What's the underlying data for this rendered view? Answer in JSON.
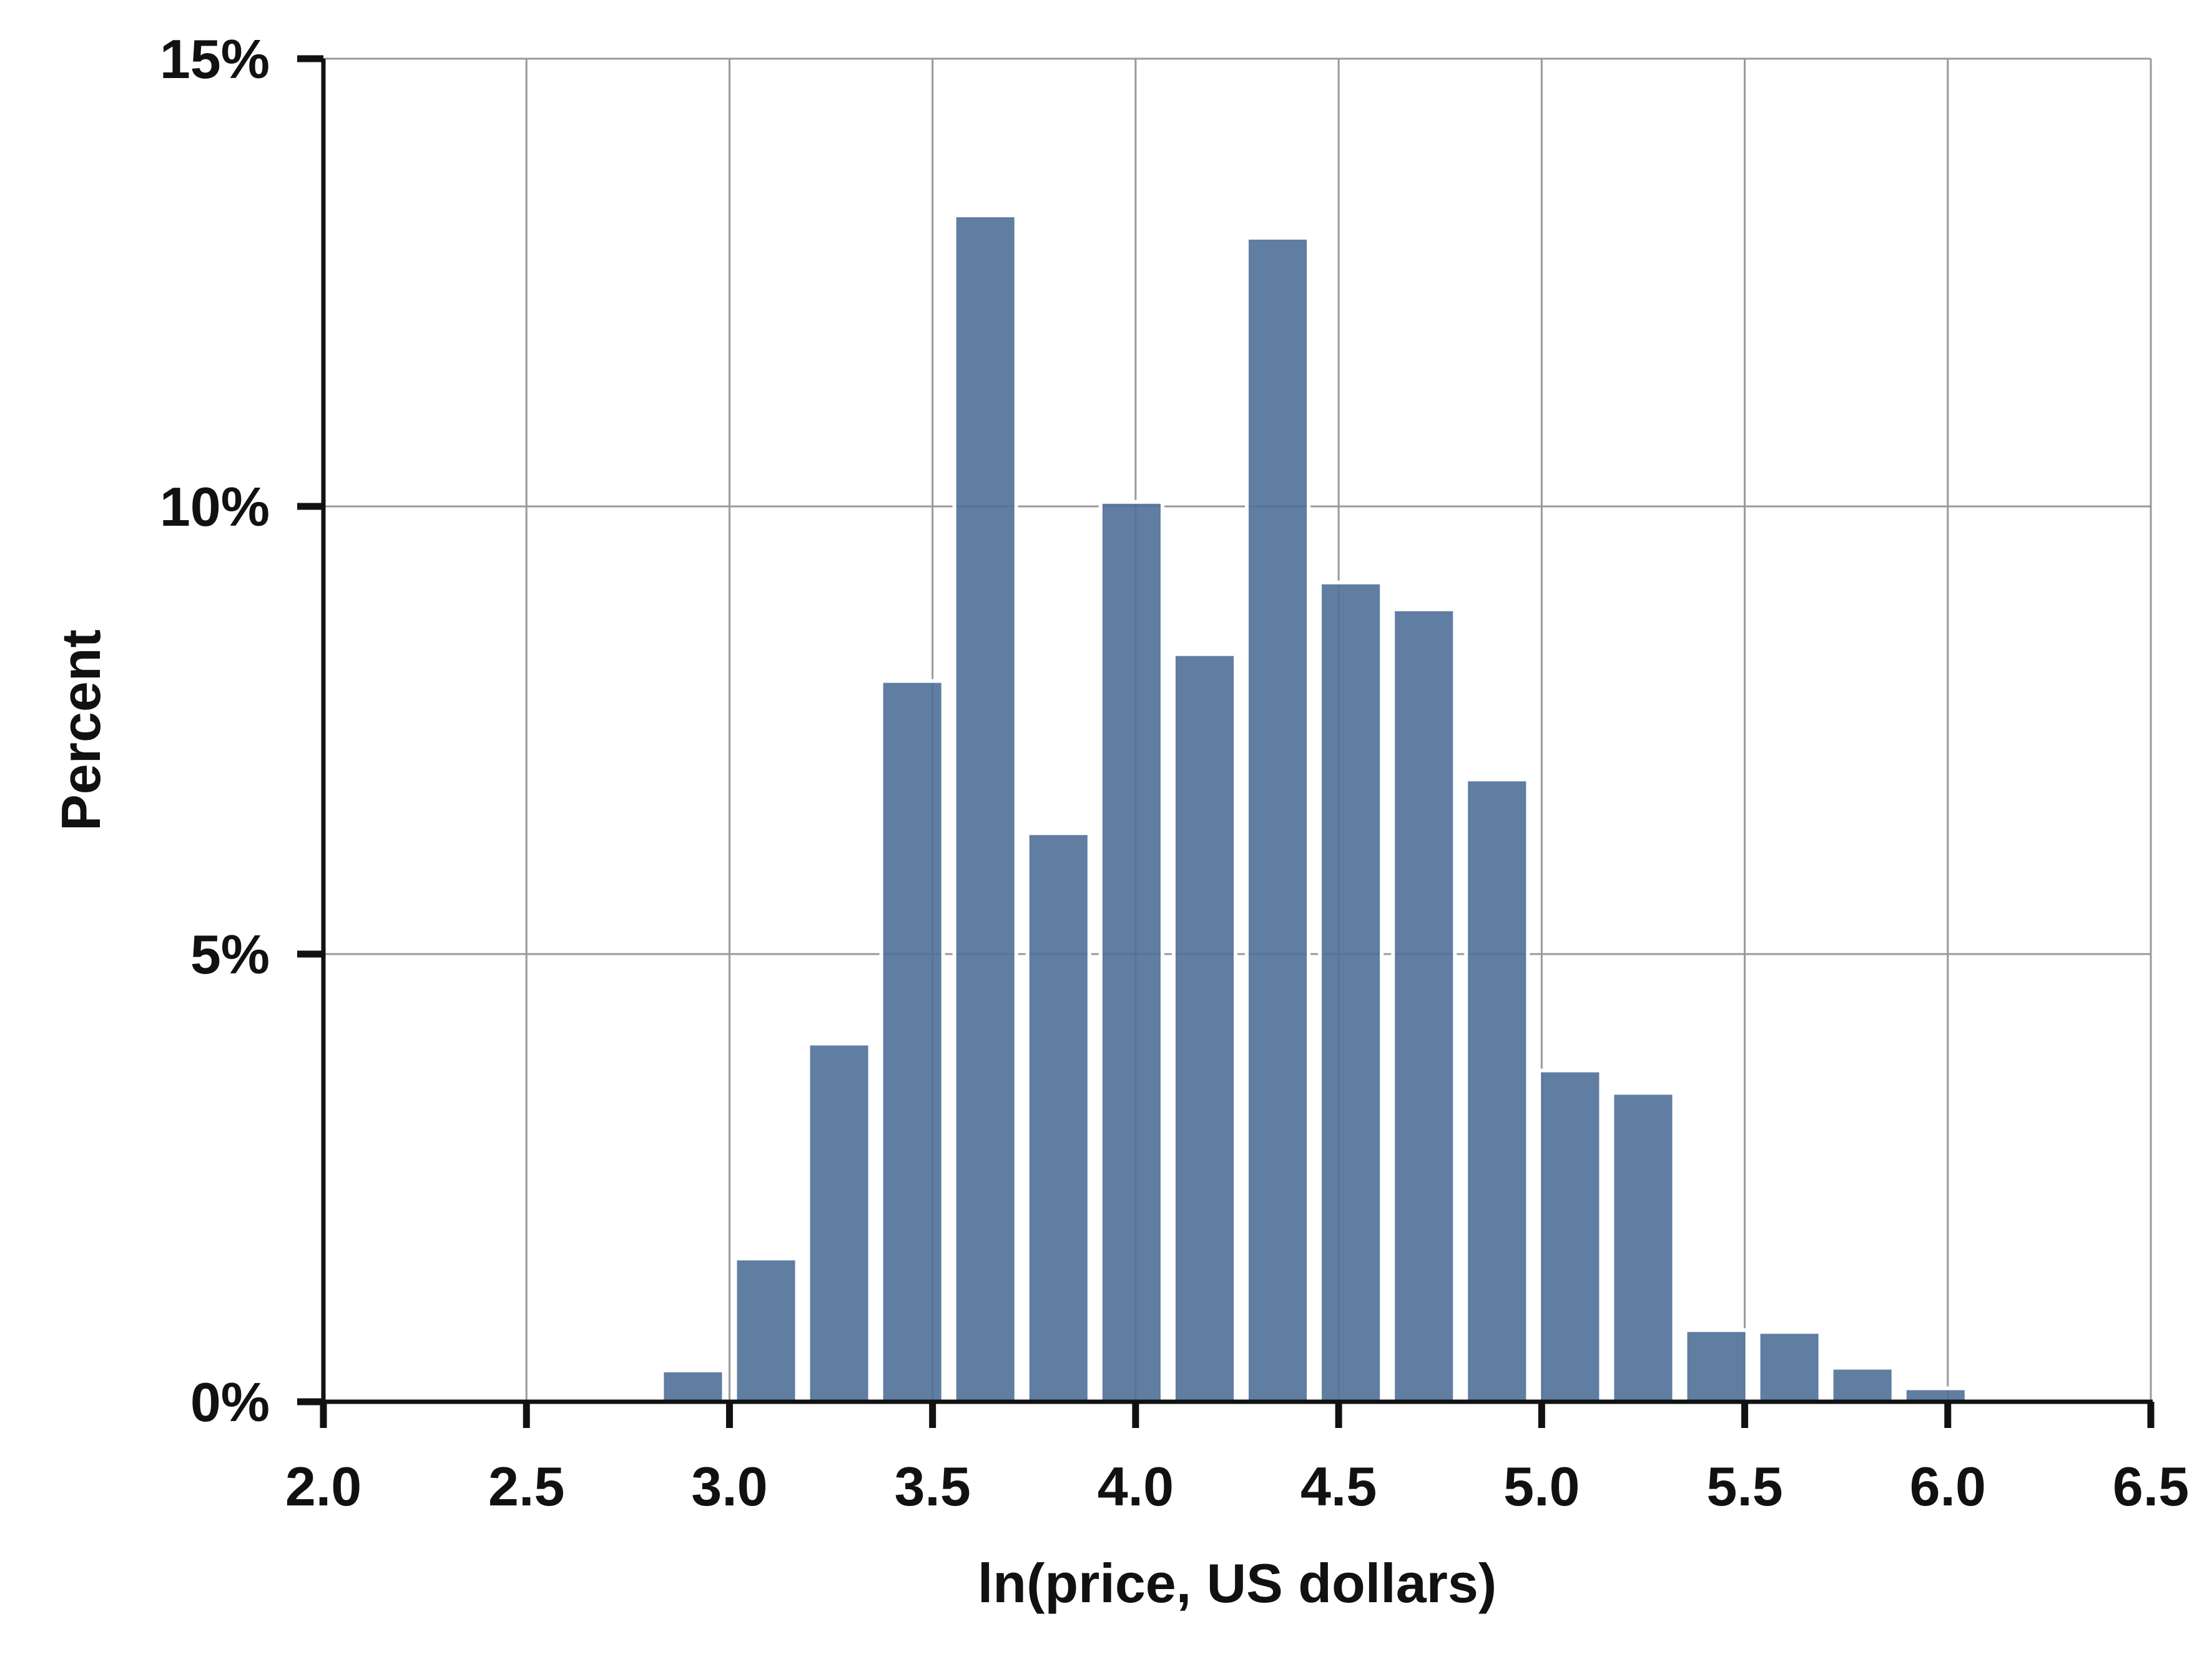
{
  "chart_data": {
    "type": "bar",
    "title": "",
    "xlabel": "ln(price, US dollars)",
    "ylabel": "Percent",
    "xlim": [
      2.0,
      6.5
    ],
    "ylim": [
      0,
      15
    ],
    "grid": true,
    "x_ticks": [
      2.0,
      2.5,
      3.0,
      3.5,
      4.0,
      4.5,
      5.0,
      5.5,
      6.0,
      6.5
    ],
    "x_tick_labels": [
      "2.0",
      "2.5",
      "3.0",
      "3.5",
      "4.0",
      "4.5",
      "5.0",
      "5.5",
      "6.0",
      "6.5"
    ],
    "y_ticks": [
      0,
      5,
      10,
      15
    ],
    "y_tick_labels": [
      "0%",
      "5%",
      "10%",
      "15%"
    ],
    "bin_width": 0.18,
    "bins": [
      {
        "x_start": 2.82,
        "x_end": 3.0,
        "value": 0.35
      },
      {
        "x_start": 3.0,
        "x_end": 3.18,
        "value": 1.6
      },
      {
        "x_start": 3.18,
        "x_end": 3.36,
        "value": 4.0
      },
      {
        "x_start": 3.36,
        "x_end": 3.54,
        "value": 8.05
      },
      {
        "x_start": 3.54,
        "x_end": 3.72,
        "value": 13.25
      },
      {
        "x_start": 3.72,
        "x_end": 3.9,
        "value": 6.35
      },
      {
        "x_start": 3.9,
        "x_end": 4.08,
        "value": 10.05
      },
      {
        "x_start": 4.08,
        "x_end": 4.26,
        "value": 8.35
      },
      {
        "x_start": 4.26,
        "x_end": 4.44,
        "value": 13.0
      },
      {
        "x_start": 4.44,
        "x_end": 4.62,
        "value": 9.15
      },
      {
        "x_start": 4.62,
        "x_end": 4.8,
        "value": 8.85
      },
      {
        "x_start": 4.8,
        "x_end": 4.98,
        "value": 6.95
      },
      {
        "x_start": 4.98,
        "x_end": 5.16,
        "value": 3.7
      },
      {
        "x_start": 5.16,
        "x_end": 5.34,
        "value": 3.45
      },
      {
        "x_start": 5.34,
        "x_end": 5.52,
        "value": 0.8
      },
      {
        "x_start": 5.52,
        "x_end": 5.7,
        "value": 0.78
      },
      {
        "x_start": 5.7,
        "x_end": 5.88,
        "value": 0.38
      },
      {
        "x_start": 5.88,
        "x_end": 6.06,
        "value": 0.15
      }
    ],
    "colors": {
      "bar": "#4f6f98",
      "grid": "#999999",
      "axis": "#111111"
    }
  }
}
